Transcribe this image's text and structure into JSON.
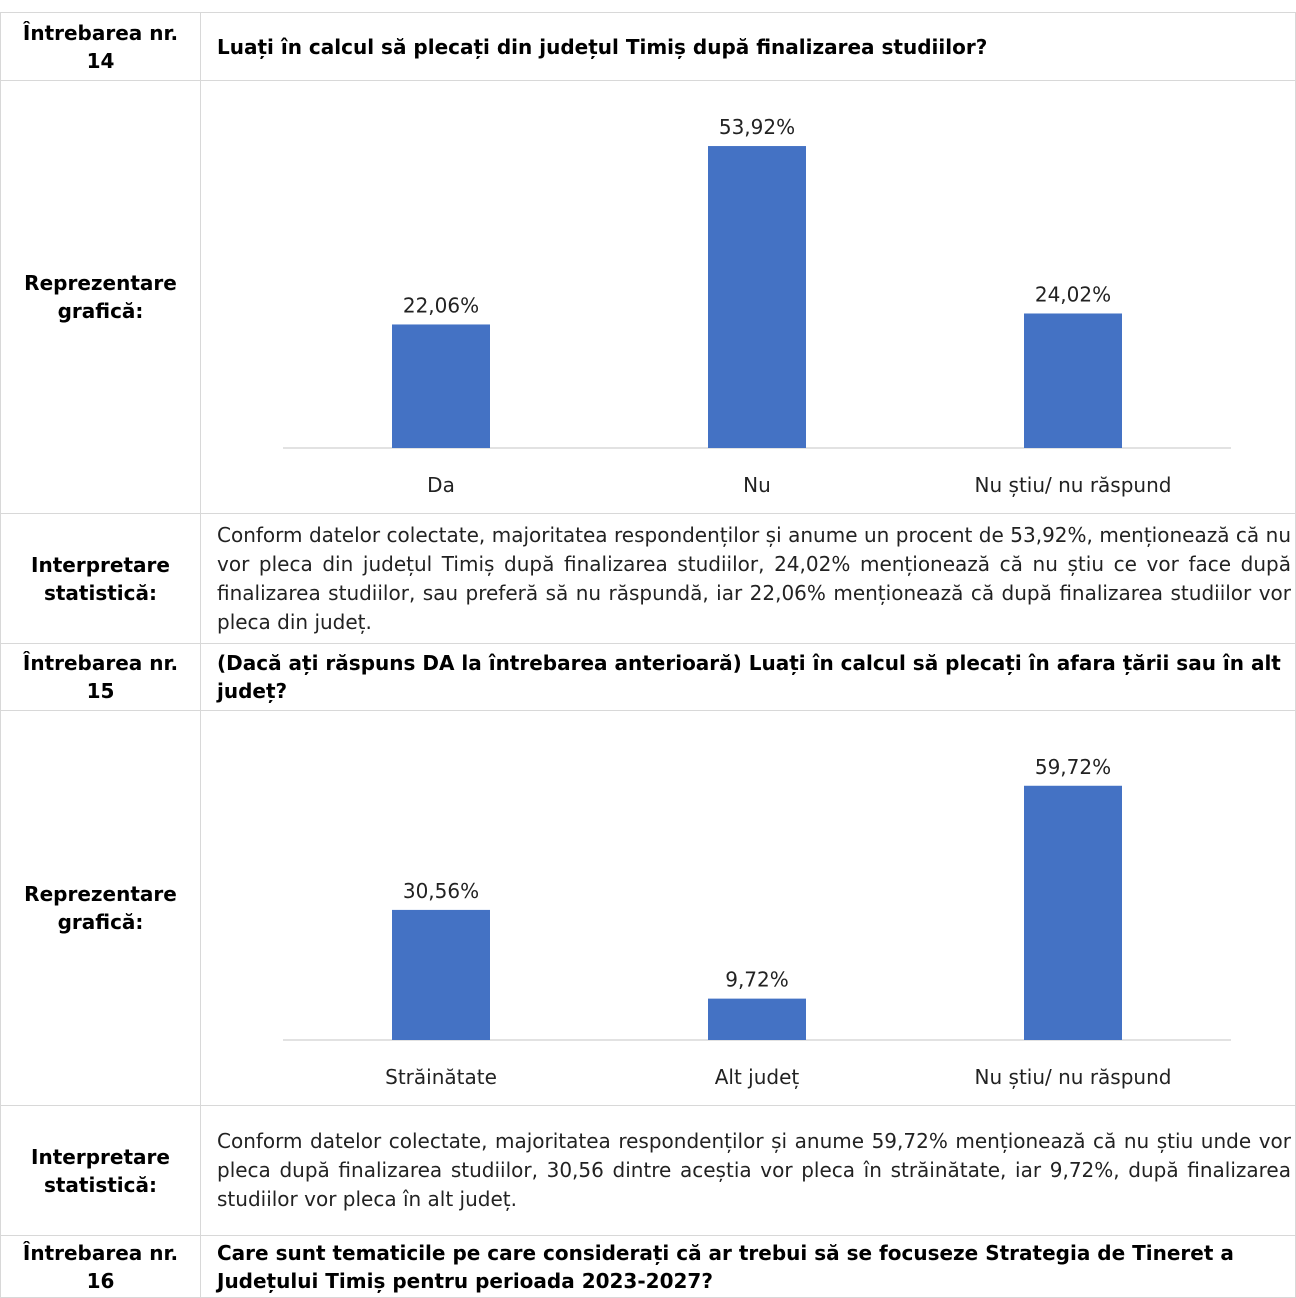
{
  "rows": [
    {
      "label": "Întrebarea nr. 14",
      "text": "Luați în calcul să plecați din județul Timiș după finalizarea studiilor?"
    },
    {
      "label": "Reprezentare grafică:",
      "chart": {
        "type": "bar",
        "categories": [
          "Da",
          "Nu",
          "Nu știu/ nu răspund"
        ],
        "values": [
          22.06,
          53.92,
          24.02
        ],
        "value_labels": [
          "22,06%",
          "53,92%",
          "24,02%"
        ],
        "color": "#4472c4",
        "ylim": [
          0,
          60
        ]
      }
    },
    {
      "label": "Interpretare statistică:",
      "text": "Conform datelor colectate, majoritatea respondenților și anume un procent de 53,92%, menționează că nu vor pleca din județul Timiș după finalizarea studiilor, 24,02% menționează că nu știu ce vor face după finalizarea studiilor, sau preferă să nu răspundă, iar 22,06% menționează că după finalizarea studiilor vor pleca din județ."
    },
    {
      "label": "Întrebarea nr. 15",
      "text": "(Dacă ați răspuns DA la întrebarea anterioară) Luați în calcul să plecați în afara țării sau în alt județ?"
    },
    {
      "label": "Reprezentare grafică:",
      "chart": {
        "type": "bar",
        "categories": [
          "Străinătate",
          "Alt județ",
          "Nu știu/ nu răspund"
        ],
        "values": [
          30.56,
          9.72,
          59.72
        ],
        "value_labels": [
          "30,56%",
          "9,72%",
          "59,72%"
        ],
        "color": "#4472c4",
        "ylim": [
          0,
          70
        ]
      }
    },
    {
      "label": "Interpretare statistică:",
      "text": "Conform datelor colectate, majoritatea respondenților și anume 59,72% menționează că nu știu unde vor pleca după finalizarea studiilor, 30,56 dintre aceștia vor pleca în străinătate, iar 9,72%, după finalizarea studiilor vor pleca în alt județ."
    },
    {
      "label": "Întrebarea nr. 16",
      "text": "Care sunt tematicile pe care considerați că ar trebui să se focuseze Strategia de Tineret a Județului Timiș pentru perioada 2023-2027?"
    }
  ]
}
